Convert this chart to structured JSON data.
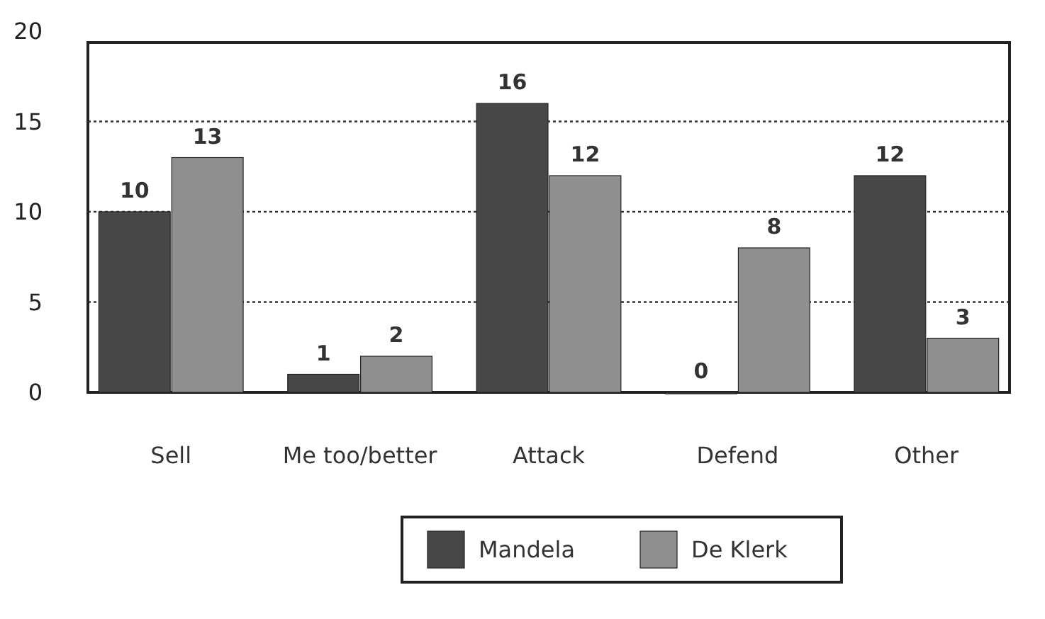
{
  "chart_data": {
    "type": "bar",
    "categories": [
      "Sell",
      "Me too/better",
      "Attack",
      "Defend",
      "Other"
    ],
    "series": [
      {
        "name": "Mandela",
        "color": "#474747",
        "values": [
          10,
          1,
          16,
          0,
          12
        ]
      },
      {
        "name": "De Klerk",
        "color": "#8f8f8f",
        "values": [
          13,
          2,
          12,
          8,
          3
        ]
      }
    ],
    "ylim": [
      0,
      20
    ],
    "yticks": [
      0,
      5,
      10,
      15,
      20
    ],
    "grid": "y",
    "legend": "bottom",
    "data_labels": true
  }
}
